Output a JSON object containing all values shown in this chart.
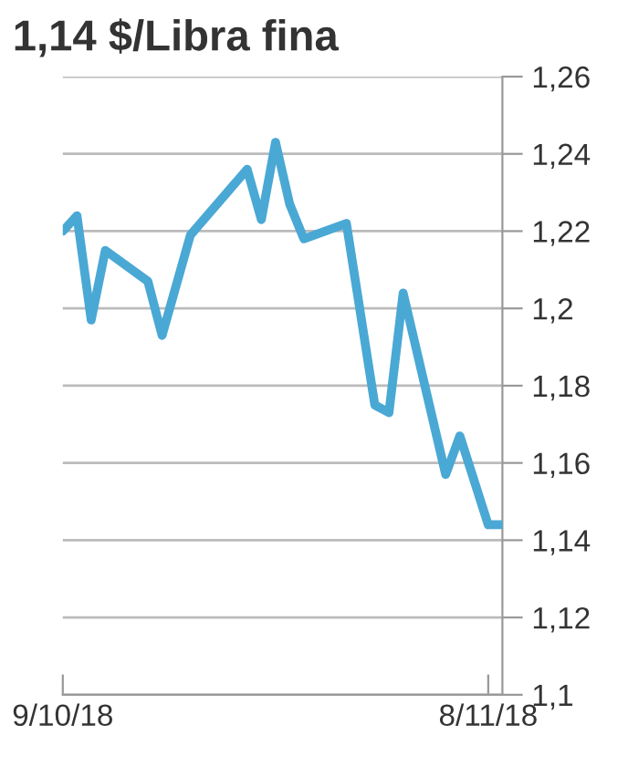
{
  "chart_data": {
    "type": "line",
    "title": "1,14 $/Libra fina",
    "x": [
      "2018-10-09",
      "2018-10-10",
      "2018-10-11",
      "2018-10-12",
      "2018-10-15",
      "2018-10-16",
      "2018-10-18",
      "2018-10-22",
      "2018-10-23",
      "2018-10-24",
      "2018-10-25",
      "2018-10-26",
      "2018-10-29",
      "2018-10-31",
      "2018-11-01",
      "2018-11-02",
      "2018-11-05",
      "2018-11-06",
      "2018-11-08",
      "2018-11-09"
    ],
    "series": [
      {
        "color": "#4aa8d4",
        "values": [
          1.22,
          1.224,
          1.197,
          1.215,
          1.207,
          1.193,
          1.219,
          1.236,
          1.223,
          1.243,
          1.227,
          1.218,
          1.222,
          1.175,
          1.173,
          1.204,
          1.157,
          1.167,
          1.144,
          1.144
        ]
      }
    ],
    "xlim": [
      "2018-10-09",
      "2018-11-09"
    ],
    "xticks": [
      {
        "value": "2018-10-09",
        "label": "9/10/18"
      },
      {
        "value": "2018-11-08",
        "label": "8/11/18"
      }
    ],
    "ylim": [
      1.1,
      1.26
    ],
    "yticks": [
      {
        "value": 1.1,
        "label": "1,1"
      },
      {
        "value": 1.12,
        "label": "1,12"
      },
      {
        "value": 1.14,
        "label": "1,14"
      },
      {
        "value": 1.16,
        "label": "1,16"
      },
      {
        "value": 1.18,
        "label": "1,18"
      },
      {
        "value": 1.2,
        "label": "1,2"
      },
      {
        "value": 1.22,
        "label": "1,22"
      },
      {
        "value": 1.24,
        "label": "1,24"
      },
      {
        "value": 1.26,
        "label": "1,26"
      }
    ],
    "grid": "y",
    "legend": false,
    "marker": "none",
    "line_style": "solid"
  }
}
